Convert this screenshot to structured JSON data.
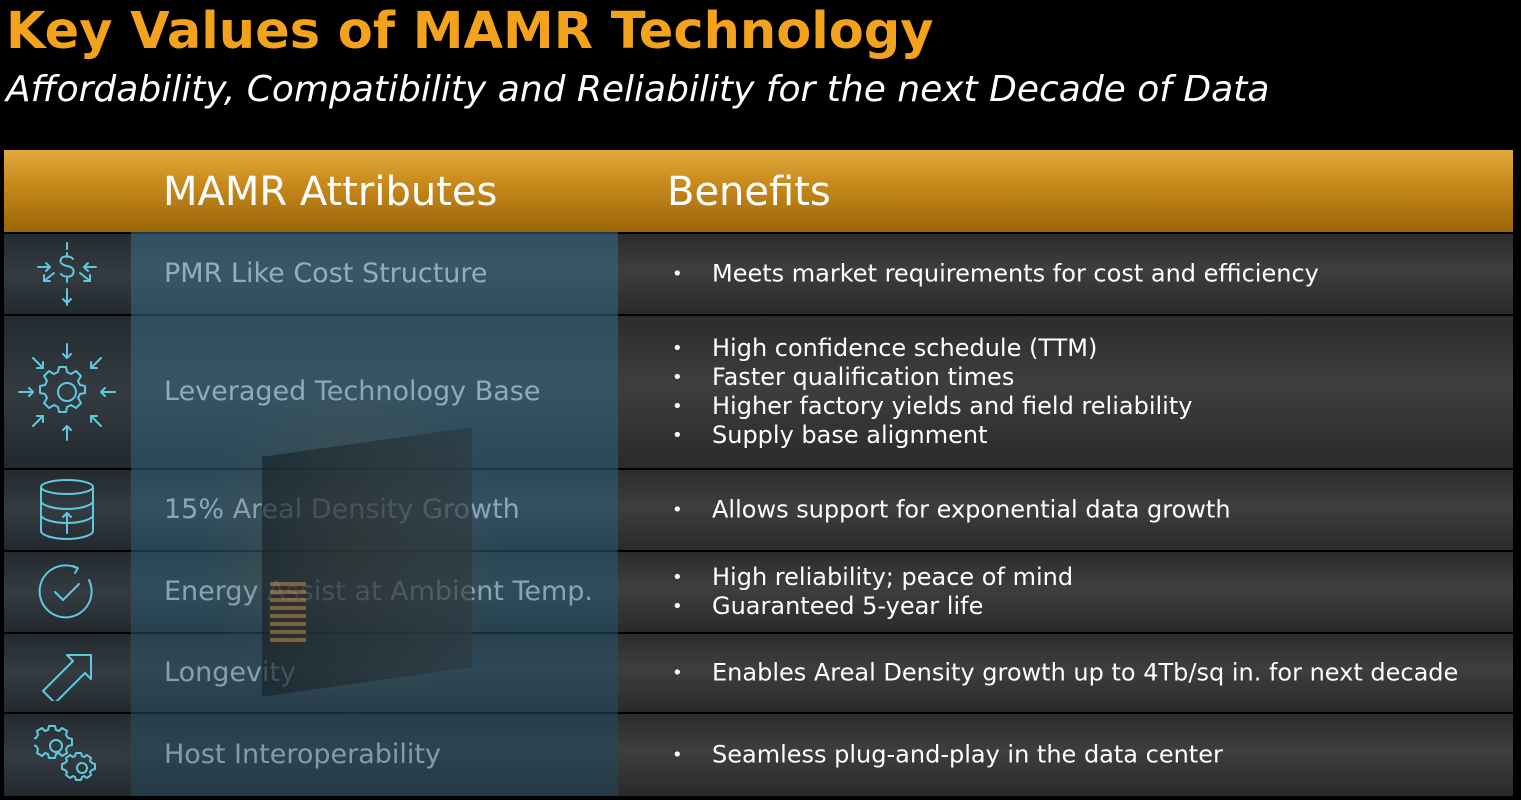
{
  "title": "Key Values of MAMR Technology",
  "subtitle": "Affordability, Compatibility and Reliability for the next Decade of Data",
  "colors": {
    "title": "#f2a21c",
    "header_band": "#c98a1c",
    "icon_stroke": "#5fc8e0",
    "row_bg": "#333333"
  },
  "table": {
    "headers": {
      "attributes": "MAMR Attributes",
      "benefits": "Benefits"
    },
    "rows": [
      {
        "icon": "dollar-arrows-icon",
        "attribute": "PMR Like Cost Structure",
        "benefits": [
          "Meets market requirements for cost and efficiency"
        ]
      },
      {
        "icon": "gear-arrows-icon",
        "attribute": "Leveraged Technology Base",
        "benefits": [
          "High confidence schedule (TTM)",
          "Faster qualification times",
          "Higher factory yields and field reliability",
          "Supply base alignment"
        ]
      },
      {
        "icon": "database-icon",
        "attribute": "15% Areal Density Growth",
        "benefits": [
          "Allows support for exponential data growth"
        ]
      },
      {
        "icon": "check-circle-icon",
        "attribute": "Energy Assist at Ambient Temp.",
        "benefits": [
          "High reliability; peace of mind",
          "Guaranteed 5-year life"
        ]
      },
      {
        "icon": "arrow-up-right-icon",
        "attribute": "Longevity",
        "benefits": [
          "Enables Areal Density growth up to 4Tb/sq in. for next decade"
        ]
      },
      {
        "icon": "gears-icon",
        "attribute": "Host Interoperability",
        "benefits": [
          "Seamless plug-and-play in the data center"
        ]
      }
    ]
  }
}
